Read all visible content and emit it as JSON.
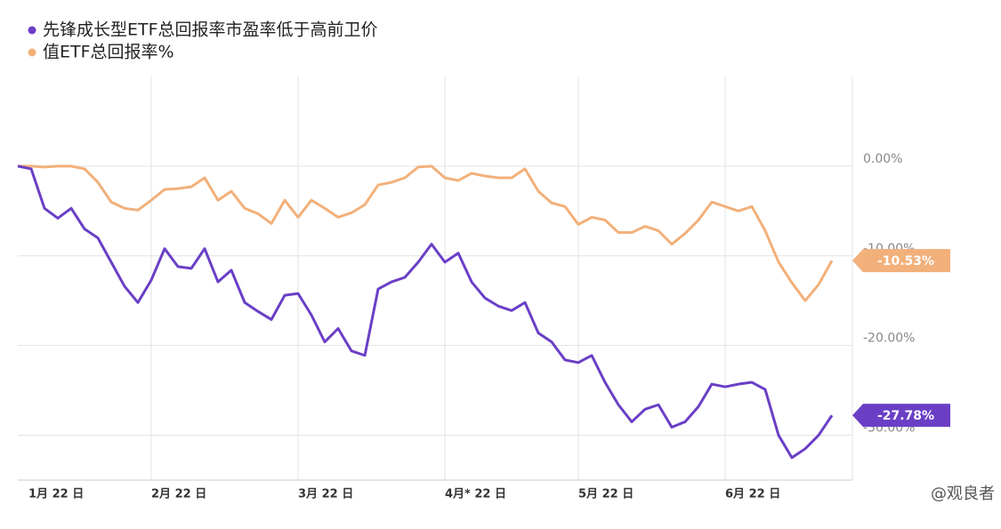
{
  "chart_data": {
    "type": "line",
    "categories": [
      "1月 22 日",
      null,
      null,
      null,
      null,
      null,
      null,
      null,
      null,
      null,
      "2月 22 日",
      null,
      null,
      null,
      null,
      null,
      null,
      null,
      null,
      null,
      null,
      "3月 22 日",
      null,
      null,
      null,
      null,
      null,
      null,
      null,
      null,
      null,
      null,
      "4月* 22 日",
      null,
      null,
      null,
      null,
      null,
      null,
      null,
      null,
      null,
      "5月 22 日",
      null,
      null,
      null,
      null,
      null,
      null,
      null,
      null,
      null,
      null,
      "6月 22 日",
      null,
      null,
      null,
      null,
      null,
      null,
      null,
      null
    ],
    "series": [
      {
        "name": "先锋成长型ETF总回报率市盈率低于高前卫价",
        "color": "#6a3fc6",
        "values": [
          0,
          -0.3,
          -4.7,
          -5.8,
          -4.7,
          -7,
          -8,
          -10.7,
          -13.4,
          -15.2,
          -12.7,
          -9.2,
          -11.2,
          -11.4,
          -9.2,
          -12.9,
          -11.6,
          -15.2,
          -16.2,
          -17.1,
          -14.4,
          -14.2,
          -16.6,
          -19.6,
          -18.1,
          -20.6,
          -21.1,
          -13.7,
          -12.9,
          -12.4,
          -10.7,
          -8.7,
          -10.7,
          -9.7,
          -12.9,
          -14.7,
          -15.6,
          -16.1,
          -15.2,
          -18.6,
          -19.6,
          -21.6,
          -21.9,
          -21.1,
          -24.1,
          -26.6,
          -28.5,
          -27.1,
          -26.6,
          -29.1,
          -28.5,
          -26.8,
          -24.3,
          -24.6,
          -24.3,
          -24.1,
          -24.9,
          -30,
          -32.5,
          -31.5,
          -30,
          -27.78
        ],
        "value_labels": [
          null,
          null,
          null,
          null,
          null,
          null,
          null,
          null,
          null,
          null,
          null,
          null,
          null,
          null,
          null,
          null,
          null,
          null,
          null,
          null,
          null,
          null,
          null,
          null,
          null,
          null,
          null,
          null,
          null,
          null,
          null,
          null,
          null,
          null,
          null,
          null,
          null,
          null,
          null,
          null,
          null,
          null,
          null,
          null,
          null,
          null,
          null,
          null,
          null,
          null,
          null,
          null,
          null,
          null,
          null,
          null,
          null,
          null,
          null,
          null,
          null,
          "-27.78%"
        ]
      },
      {
        "name": "值ETF总回报率%",
        "color": "#f2b07a",
        "values": [
          0,
          0,
          -0.1,
          0,
          0,
          -0.3,
          -1.8,
          -4,
          -4.7,
          -4.9,
          -3.8,
          -2.6,
          -2.5,
          -2.3,
          -1.3,
          -3.8,
          -2.8,
          -4.7,
          -5.3,
          -6.4,
          -3.8,
          -5.7,
          -3.8,
          -4.7,
          -5.7,
          -5.2,
          -4.3,
          -2.1,
          -1.8,
          -1.3,
          -0.1,
          0,
          -1.3,
          -1.6,
          -0.8,
          -1.1,
          -1.3,
          -1.3,
          -0.3,
          -2.8,
          -4.1,
          -4.5,
          -6.5,
          -5.7,
          -6,
          -7.4,
          -7.4,
          -6.7,
          -7.2,
          -8.7,
          -7.5,
          -6,
          -4,
          -4.5,
          -5,
          -4.5,
          -7.2,
          -10.7,
          -13,
          -15,
          -13.2,
          -10.53
        ],
        "value_labels": [
          null,
          null,
          null,
          null,
          null,
          null,
          null,
          null,
          null,
          null,
          null,
          null,
          null,
          null,
          null,
          null,
          null,
          null,
          null,
          null,
          null,
          null,
          null,
          null,
          null,
          null,
          null,
          null,
          null,
          null,
          null,
          null,
          null,
          null,
          null,
          null,
          null,
          null,
          null,
          null,
          null,
          null,
          null,
          null,
          null,
          null,
          null,
          null,
          null,
          null,
          null,
          null,
          null,
          null,
          null,
          null,
          null,
          null,
          null,
          null,
          null,
          "-10.53%"
        ]
      }
    ],
    "ylim": [
      -35,
      10
    ],
    "yticks": [
      {
        "value": 0,
        "label": "0.00%"
      },
      {
        "value": -10,
        "label": "-10.00%"
      },
      {
        "value": -20,
        "label": "-20.00%"
      },
      {
        "value": -30,
        "label": "-30.00%"
      }
    ],
    "grid": true
  },
  "watermark": "@观良者"
}
